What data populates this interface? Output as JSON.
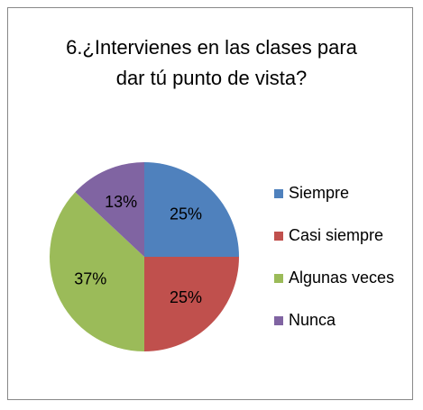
{
  "chart_data": {
    "type": "pie",
    "title": "6.¿Intervienes en las clases para dar tú punto de vista?",
    "categories": [
      "Siempre",
      "Casi siempre",
      "Algunas veces",
      "Nunca"
    ],
    "values": [
      25,
      25,
      37,
      13
    ],
    "value_labels": [
      "25%",
      "25%",
      "37%",
      "13%"
    ],
    "colors": [
      "#4f81bd",
      "#c0504d",
      "#9bbb59",
      "#8064a2"
    ],
    "legend": "right"
  }
}
